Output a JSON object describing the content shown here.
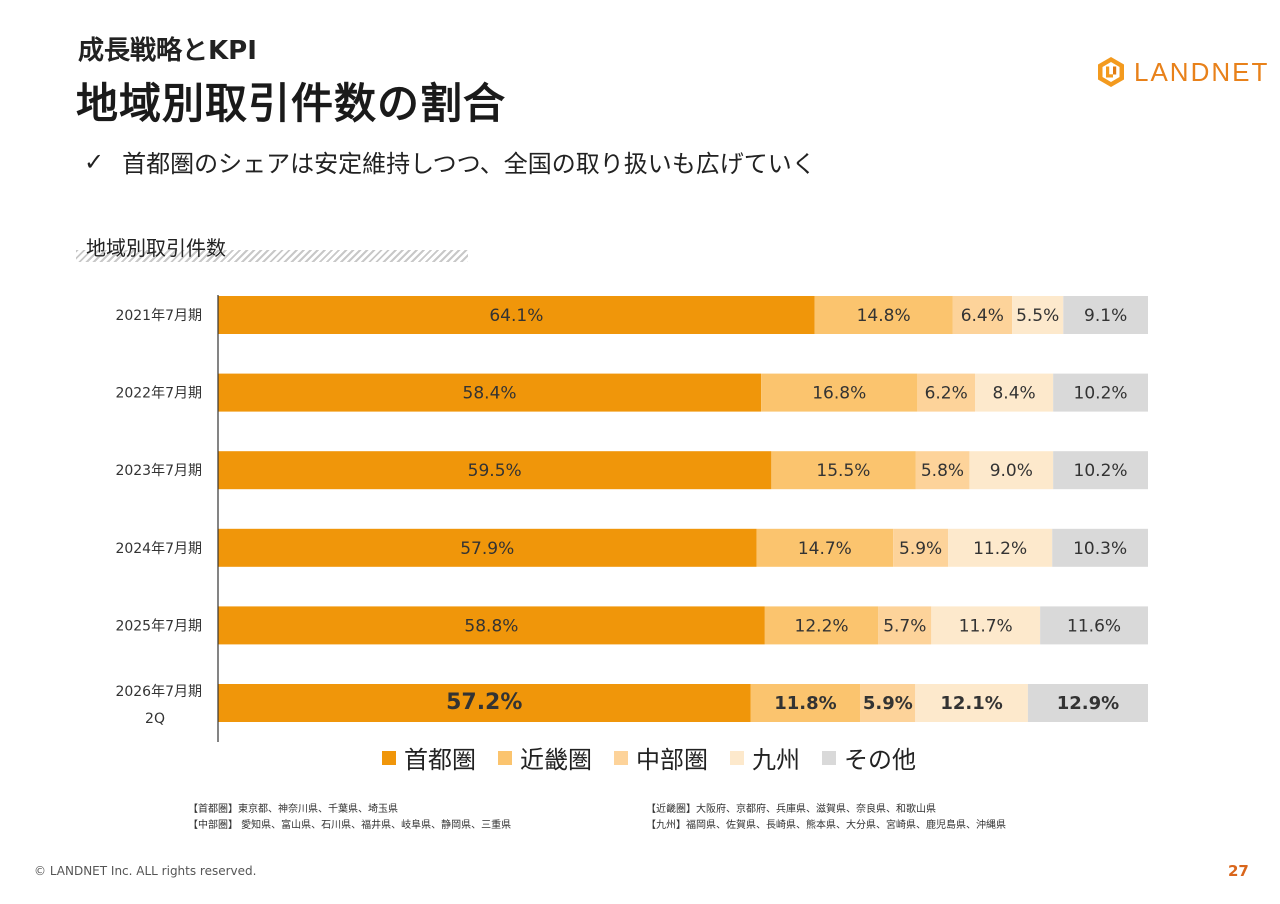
{
  "header": {
    "subtitle": "成長戦略とKPI",
    "title": "地域別取引件数の割合",
    "logo_text": "LANDNET"
  },
  "lead": {
    "check": "✓",
    "text": "首都圏のシェアは安定維持しつつ、全国の取り扱いも広げていく"
  },
  "chart_label": "地域別取引件数",
  "colors": {
    "shutoken": "#f0960a",
    "kinki": "#fbc46e",
    "chubu": "#fdd39a",
    "kyushu": "#fde9cc",
    "other": "#d9d9d9"
  },
  "chart_data": {
    "type": "bar",
    "orientation": "horizontal",
    "stacked": "percent",
    "title": "地域別取引件数",
    "categories": [
      "2021年7月期",
      "2022年7月期",
      "2023年7月期",
      "2024年7月期",
      "2025年7月期",
      "2026年7月期\n2Q"
    ],
    "series": [
      {
        "name": "首都圏",
        "values": [
          64.1,
          58.4,
          59.5,
          57.9,
          58.8,
          57.2
        ]
      },
      {
        "name": "近畿圏",
        "values": [
          14.8,
          16.8,
          15.5,
          14.7,
          12.2,
          11.8
        ]
      },
      {
        "name": "中部圏",
        "values": [
          6.4,
          6.2,
          5.8,
          5.9,
          5.7,
          5.9
        ]
      },
      {
        "name": "九州",
        "values": [
          5.5,
          8.4,
          9.0,
          11.2,
          11.7,
          12.1
        ]
      },
      {
        "name": "その他",
        "values": [
          9.1,
          10.2,
          10.2,
          10.3,
          11.6,
          12.9
        ]
      }
    ],
    "labels": [
      [
        "64.1%",
        "14.8%",
        "6.4%",
        "5.5%",
        "9.1%"
      ],
      [
        "58.4%",
        "16.8%",
        "6.2%",
        "8.4%",
        "10.2%"
      ],
      [
        "59.5%",
        "15.5%",
        "5.8%",
        "9.0%",
        "10.2%"
      ],
      [
        "57.9%",
        "14.7%",
        "5.9%",
        "11.2%",
        "10.3%"
      ],
      [
        "58.8%",
        "12.2%",
        "5.7%",
        "11.7%",
        "11.6%"
      ],
      [
        "57.2%",
        "11.8%",
        "5.9%",
        "12.1%",
        "12.9%"
      ]
    ],
    "highlight_last": true,
    "legend_position": "bottom"
  },
  "legend": {
    "items": [
      {
        "label": "首都圏",
        "color": "#f0960a"
      },
      {
        "label": "近畿圏",
        "color": "#fbc46e"
      },
      {
        "label": "中部圏",
        "color": "#fdd39a"
      },
      {
        "label": "九州",
        "color": "#fde9cc"
      },
      {
        "label": "その他",
        "color": "#d9d9d9"
      }
    ]
  },
  "notes": {
    "shutoken": "【首都圏】東京都、神奈川県、千葉県、埼玉県",
    "chubu": "【中部圏】 愛知県、富山県、石川県、福井県、岐阜県、静岡県、三重県",
    "kinki": "【近畿圏】大阪府、京都府、兵庫県、滋賀県、奈良県、和歌山県",
    "kyushu": "【九州】福岡県、佐賀県、長崎県、熊本県、大分県、宮崎県、鹿児島県、沖縄県"
  },
  "footer": {
    "copyright": "© LANDNET Inc. ALL rights reserved.",
    "page": "27"
  }
}
